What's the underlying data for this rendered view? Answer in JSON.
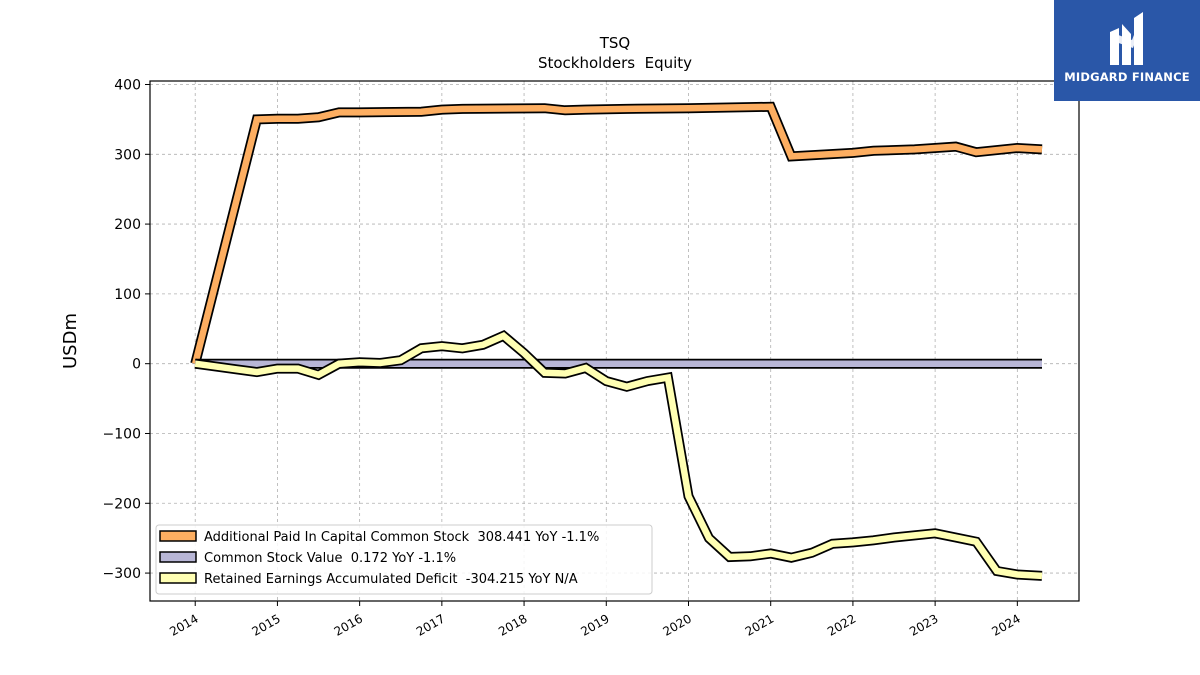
{
  "brand": {
    "name": "MIDGARD FINANCE",
    "logo_icon": "midgard-m-icon",
    "color": "#2a57a8"
  },
  "chart_data": {
    "type": "line",
    "title": "TSQ",
    "subtitle": "Stockholders  Equity",
    "ylabel": "USDm",
    "xlabel": "",
    "ylim": [
      -340,
      405
    ],
    "xlim": [
      2013.45,
      2024.75
    ],
    "yticks": [
      400,
      300,
      200,
      100,
      0,
      -100,
      -200,
      -300
    ],
    "ytick_labels": [
      "400",
      "300",
      "200",
      "100",
      "0",
      "−100",
      "−200",
      "−300"
    ],
    "xticks": [
      2014,
      2015,
      2016,
      2017,
      2018,
      2019,
      2020,
      2021,
      2022,
      2023,
      2024
    ],
    "xtick_labels": [
      "2014",
      "2015",
      "2016",
      "2017",
      "2018",
      "2019",
      "2020",
      "2021",
      "2022",
      "2023",
      "2024"
    ],
    "grid": true,
    "legend_position": "lower-left",
    "series": [
      {
        "name": "Additional Paid In Capital Common Stock  308.441 YoY -1.1%",
        "color": "#fdae61",
        "points": [
          [
            2014.0,
            0
          ],
          [
            2014.75,
            350
          ],
          [
            2015.0,
            351
          ],
          [
            2015.25,
            351
          ],
          [
            2015.5,
            353
          ],
          [
            2015.75,
            360
          ],
          [
            2016.0,
            360
          ],
          [
            2016.75,
            361
          ],
          [
            2017.0,
            364
          ],
          [
            2017.25,
            365
          ],
          [
            2018.25,
            366
          ],
          [
            2018.5,
            363
          ],
          [
            2018.75,
            364
          ],
          [
            2019.25,
            365
          ],
          [
            2020.0,
            366
          ],
          [
            2021.0,
            368
          ],
          [
            2021.25,
            297
          ],
          [
            2022.0,
            302
          ],
          [
            2022.25,
            305
          ],
          [
            2022.75,
            307
          ],
          [
            2023.0,
            309
          ],
          [
            2023.25,
            311
          ],
          [
            2023.5,
            303
          ],
          [
            2024.0,
            309
          ],
          [
            2024.3,
            307
          ]
        ]
      },
      {
        "name": "Common Stock Value  0.172 YoY -1.1%",
        "color": "#b8b6d6",
        "points": [
          [
            2014.0,
            0
          ],
          [
            2024.3,
            0
          ]
        ]
      },
      {
        "name": "Retained Earnings Accumulated Deficit  -304.215 YoY N/A",
        "color": "#ffffb3",
        "points": [
          [
            2014.0,
            0
          ],
          [
            2014.5,
            -8
          ],
          [
            2014.75,
            -12
          ],
          [
            2015.0,
            -7
          ],
          [
            2015.25,
            -7
          ],
          [
            2015.5,
            -16
          ],
          [
            2015.75,
            0
          ],
          [
            2016.0,
            2
          ],
          [
            2016.25,
            1
          ],
          [
            2016.5,
            5
          ],
          [
            2016.75,
            22
          ],
          [
            2017.0,
            25
          ],
          [
            2017.25,
            22
          ],
          [
            2017.5,
            27
          ],
          [
            2017.75,
            40
          ],
          [
            2018.0,
            15
          ],
          [
            2018.25,
            -13
          ],
          [
            2018.5,
            -14
          ],
          [
            2018.75,
            -6
          ],
          [
            2019.0,
            -25
          ],
          [
            2019.25,
            -33
          ],
          [
            2019.5,
            -25
          ],
          [
            2019.75,
            -20
          ],
          [
            2020.0,
            -190
          ],
          [
            2020.25,
            -250
          ],
          [
            2020.5,
            -277
          ],
          [
            2020.75,
            -276
          ],
          [
            2021.0,
            -272
          ],
          [
            2021.25,
            -278
          ],
          [
            2021.5,
            -271
          ],
          [
            2021.75,
            -258
          ],
          [
            2022.0,
            -256
          ],
          [
            2022.25,
            -253
          ],
          [
            2022.5,
            -249
          ],
          [
            2022.75,
            -246
          ],
          [
            2023.0,
            -243
          ],
          [
            2023.25,
            -249
          ],
          [
            2023.5,
            -255
          ],
          [
            2023.75,
            -297
          ],
          [
            2024.0,
            -302
          ],
          [
            2024.3,
            -304
          ]
        ]
      }
    ]
  }
}
